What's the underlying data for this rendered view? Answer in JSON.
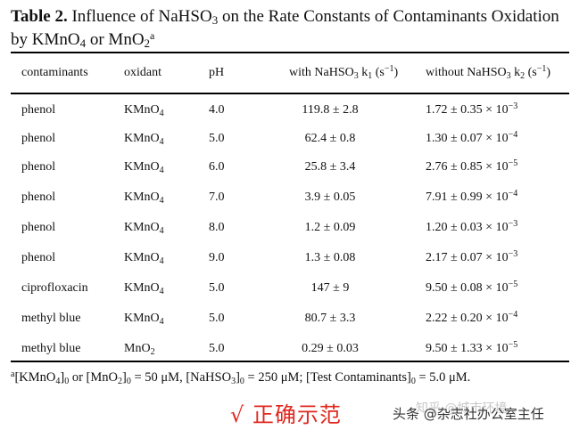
{
  "caption": {
    "label": "Table 2.",
    "text_a": " Influence of NaHSO",
    "sub_a": "3",
    "text_b": " on the Rate Constants of Contaminants Oxidation by KMnO",
    "sub_b": "4",
    "text_c": " or MnO",
    "sub_c": "2",
    "sup_c": "a"
  },
  "headers": {
    "contaminants": "contaminants",
    "oxidant": "oxidant",
    "ph": "pH",
    "with_a": "with NaHSO",
    "with_sub": "3",
    "with_b": " k",
    "with_sub2": "1",
    "with_c": " (s",
    "with_sup": "−1",
    "with_d": ")",
    "without_a": "without NaHSO",
    "without_sub": "3",
    "without_b": " k",
    "without_sub2": "2",
    "without_c": " (s",
    "without_sup": "−1",
    "without_d": ")"
  },
  "rows": [
    {
      "contaminant": "phenol",
      "ox": "KMnO",
      "ox_sub": "4",
      "ph": "4.0",
      "k1": "119.8 ± 2.8",
      "k2": "1.72 ± 0.35 × 10",
      "k2_exp": "−3"
    },
    {
      "contaminant": "phenol",
      "ox": "KMnO",
      "ox_sub": "4",
      "ph": "5.0",
      "k1": "62.4 ± 0.8",
      "k2": "1.30 ± 0.07 × 10",
      "k2_exp": "−4"
    },
    {
      "contaminant": "phenol",
      "ox": "KMnO",
      "ox_sub": "4",
      "ph": "6.0",
      "k1": "25.8 ± 3.4",
      "k2": "2.76 ± 0.85 × 10",
      "k2_exp": "−5"
    },
    {
      "contaminant": "phenol",
      "ox": "KMnO",
      "ox_sub": "4",
      "ph": "7.0",
      "k1": "3.9 ± 0.05",
      "k2": "7.91 ± 0.99 × 10",
      "k2_exp": "−4"
    },
    {
      "contaminant": "phenol",
      "ox": "KMnO",
      "ox_sub": "4",
      "ph": "8.0",
      "k1": "1.2 ± 0.09",
      "k2": "1.20 ± 0.03 × 10",
      "k2_exp": "−3"
    },
    {
      "contaminant": "phenol",
      "ox": "KMnO",
      "ox_sub": "4",
      "ph": "9.0",
      "k1": "1.3 ± 0.08",
      "k2": "2.17 ± 0.07 × 10",
      "k2_exp": "−3"
    },
    {
      "contaminant": "ciprofloxacin",
      "ox": "KMnO",
      "ox_sub": "4",
      "ph": "5.0",
      "k1": "147 ± 9",
      "k2": "9.50 ± 0.08 × 10",
      "k2_exp": "−5"
    },
    {
      "contaminant": "methyl blue",
      "ox": "KMnO",
      "ox_sub": "4",
      "ph": "5.0",
      "k1": "80.7 ± 3.3",
      "k2": "2.22 ± 0.20 × 10",
      "k2_exp": "−4"
    },
    {
      "contaminant": "methyl blue",
      "ox": "MnO",
      "ox_sub": "2",
      "ph": "5.0",
      "k1": "0.29 ± 0.03",
      "k2": "9.50 ± 1.33 × 10",
      "k2_exp": "−5"
    }
  ],
  "footnote": {
    "sup": "a",
    "p1": "[KMnO",
    "s1": "4",
    "p2": "]",
    "s2": "0",
    "p3": " or [MnO",
    "s3": "2",
    "p4": "]",
    "s4": "0",
    "p5": " = 50 μM, [NaHSO",
    "s5": "3",
    "p6": "]",
    "s6": "0",
    "p7": " = 250 μM; [Test Contaminants]",
    "s7": "0",
    "p8": " = 5.0 μM."
  },
  "stamp": "√ 正确示范",
  "watermark": {
    "faint": "知乎 @城市环境",
    "dark": "头条 @杂志社办公室主任"
  },
  "colors": {
    "stamp": "#e0271e",
    "rule": "#000000"
  }
}
